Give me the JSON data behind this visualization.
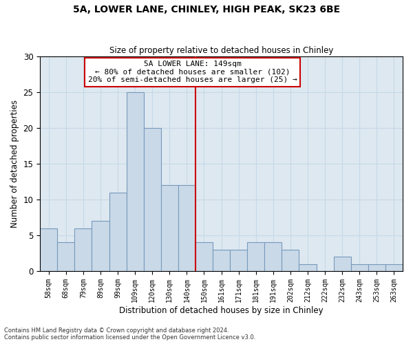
{
  "title_line1": "5A, LOWER LANE, CHINLEY, HIGH PEAK, SK23 6BE",
  "title_line2": "Size of property relative to detached houses in Chinley",
  "xlabel": "Distribution of detached houses by size in Chinley",
  "ylabel": "Number of detached properties",
  "categories": [
    "58sqm",
    "68sqm",
    "79sqm",
    "89sqm",
    "99sqm",
    "109sqm",
    "120sqm",
    "130sqm",
    "140sqm",
    "150sqm",
    "161sqm",
    "171sqm",
    "181sqm",
    "191sqm",
    "202sqm",
    "212sqm",
    "222sqm",
    "232sqm",
    "243sqm",
    "253sqm",
    "263sqm"
  ],
  "values": [
    6,
    4,
    6,
    7,
    11,
    25,
    20,
    12,
    12,
    4,
    3,
    3,
    4,
    4,
    3,
    1,
    0,
    2,
    1,
    1,
    1
  ],
  "bar_color": "#c9d9e8",
  "bar_edge_color": "#7799bb",
  "grid_color": "#c8d8e8",
  "background_color": "#dde8f0",
  "vline_color": "#cc0000",
  "vline_x_index": 9,
  "annotation_line1": "5A LOWER LANE: 149sqm",
  "annotation_line2": "← 80% of detached houses are smaller (102)",
  "annotation_line3": "20% of semi-detached houses are larger (25) →",
  "annotation_box_color": "#ffffff",
  "annotation_box_edge": "#cc0000",
  "ylim": [
    0,
    30
  ],
  "yticks": [
    0,
    5,
    10,
    15,
    20,
    25,
    30
  ],
  "footer_line1": "Contains HM Land Registry data © Crown copyright and database right 2024.",
  "footer_line2": "Contains public sector information licensed under the Open Government Licence v3.0."
}
